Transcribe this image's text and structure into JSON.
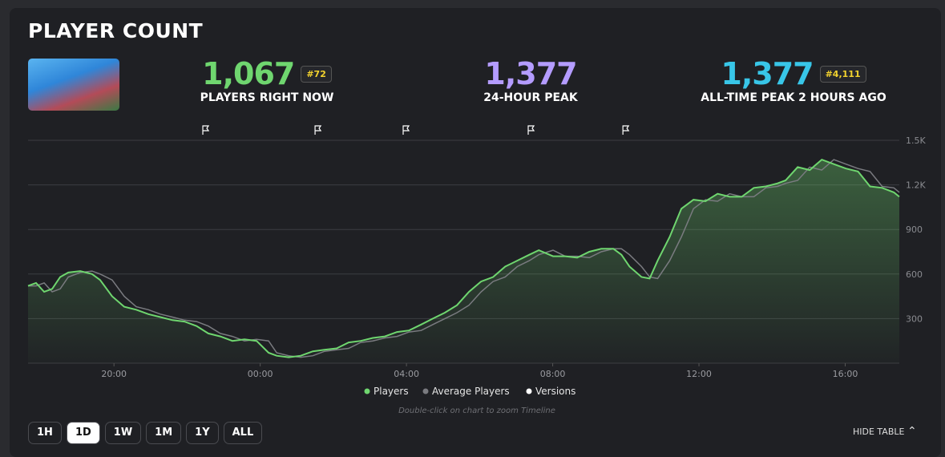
{
  "title": "PLAYER COUNT",
  "stats": [
    {
      "value": "1,067",
      "rank": "#72",
      "label": "PLAYERS RIGHT NOW",
      "color": "#6fd66f"
    },
    {
      "value": "1,377",
      "label": "24-HOUR PEAK",
      "color": "#b49cff"
    },
    {
      "value": "1,377",
      "rank": "#4,111",
      "label": "ALL-TIME PEAK 2 HOURS AGO",
      "color": "#38c6e8"
    }
  ],
  "chart_data": {
    "type": "area",
    "x": [
      17.65,
      17.87,
      18.09,
      18.31,
      18.53,
      18.75,
      19.08,
      19.4,
      19.62,
      19.95,
      20.28,
      20.61,
      20.94,
      21.27,
      21.6,
      21.93,
      22.26,
      22.58,
      22.91,
      23.24,
      23.57,
      23.9,
      24.23,
      24.45,
      24.78,
      25.11,
      25.44,
      25.76,
      26.09,
      26.42,
      26.75,
      27.08,
      27.41,
      27.74,
      28.07,
      28.4,
      28.72,
      29.05,
      29.38,
      29.71,
      30.04,
      30.37,
      30.7,
      31.03,
      31.36,
      31.62,
      32.01,
      32.34,
      32.67,
      33.0,
      33.33,
      33.66,
      33.88,
      34.1,
      34.43,
      34.65,
      34.87,
      35.2,
      35.52,
      35.85,
      36.18,
      36.51,
      36.84,
      37.17,
      37.5,
      37.83,
      38.15,
      38.37,
      38.7,
      39.03,
      39.36,
      39.69,
      40.02,
      40.35,
      40.68,
      41.01,
      41.33,
      41.48
    ],
    "series": [
      {
        "name": "Players",
        "color": "#6fd66f",
        "values": [
          520,
          540,
          480,
          500,
          580,
          610,
          620,
          600,
          560,
          450,
          380,
          360,
          330,
          310,
          290,
          280,
          250,
          200,
          180,
          150,
          160,
          150,
          70,
          50,
          40,
          50,
          80,
          90,
          100,
          140,
          150,
          170,
          180,
          210,
          220,
          260,
          300,
          340,
          390,
          480,
          550,
          580,
          650,
          690,
          730,
          760,
          720,
          720,
          710,
          750,
          770,
          770,
          730,
          650,
          580,
          570,
          690,
          850,
          1040,
          1100,
          1090,
          1140,
          1120,
          1120,
          1180,
          1190,
          1210,
          1230,
          1320,
          1300,
          1370,
          1340,
          1310,
          1290,
          1190,
          1180,
          1150,
          1120
        ]
      },
      {
        "name": "Average Players",
        "color": "#7a7b80",
        "values": [
          520,
          520,
          540,
          480,
          500,
          580,
          610,
          620,
          600,
          560,
          450,
          380,
          360,
          330,
          310,
          290,
          280,
          250,
          200,
          180,
          150,
          160,
          150,
          70,
          50,
          40,
          50,
          80,
          90,
          100,
          140,
          150,
          170,
          180,
          210,
          220,
          260,
          300,
          340,
          390,
          480,
          550,
          580,
          650,
          690,
          730,
          760,
          720,
          720,
          710,
          750,
          770,
          770,
          730,
          650,
          580,
          570,
          690,
          850,
          1040,
          1100,
          1090,
          1140,
          1120,
          1120,
          1180,
          1190,
          1210,
          1230,
          1320,
          1300,
          1370,
          1340,
          1310,
          1290,
          1190,
          1180,
          1150
        ]
      }
    ],
    "versions": {
      "name": "Versions",
      "color": "#ffffff",
      "x": [
        22.43,
        25.5,
        27.91,
        31.33,
        33.92
      ]
    },
    "xlim": [
      17.65,
      41.48
    ],
    "xticks": [
      {
        "value": 20,
        "label": "20:00"
      },
      {
        "value": 24,
        "label": "00:00"
      },
      {
        "value": 28,
        "label": "04:00"
      },
      {
        "value": 32,
        "label": "08:00"
      },
      {
        "value": 36,
        "label": "12:00"
      },
      {
        "value": 40,
        "label": "16:00"
      }
    ],
    "ylim": [
      0,
      1500
    ],
    "yticks": [
      300,
      600,
      900,
      {
        "value": 1200,
        "label": "1.2K"
      },
      {
        "value": 1500,
        "label": "1.5K"
      }
    ],
    "grid": true
  },
  "hint": "Double-click on chart to zoom Timeline",
  "ranges": [
    "1H",
    "1D",
    "1W",
    "1M",
    "1Y",
    "ALL"
  ],
  "active_range": "1D",
  "toggle": "HIDE TABLE"
}
